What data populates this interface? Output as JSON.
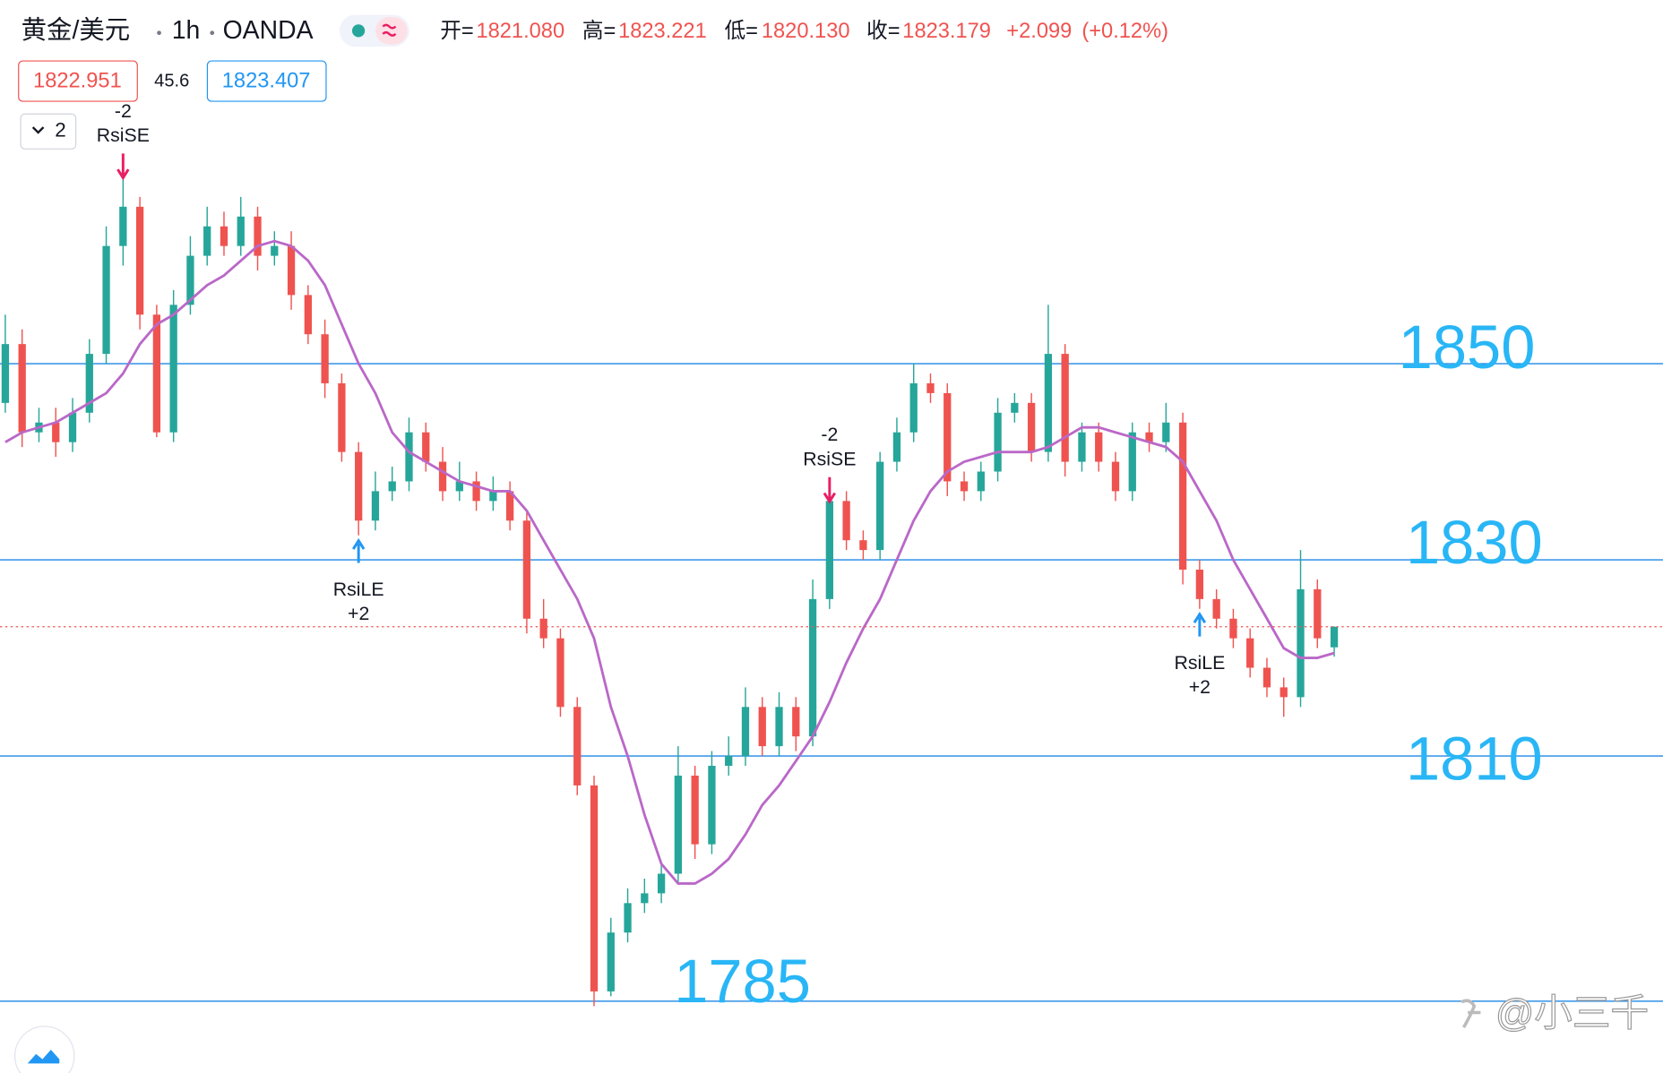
{
  "chart_data": {
    "type": "candlestick",
    "symbol": "黄金/美元",
    "interval": "1h",
    "source": "OANDA",
    "ohlc_labels": [
      "开=",
      "高=",
      "低=",
      "收="
    ],
    "ohlc_values": [
      {
        "value": 1821.08,
        "label": "1821.080"
      },
      {
        "value": 1823.221,
        "label": "1823.221"
      },
      {
        "value": 1820.13,
        "label": "1820.130"
      },
      {
        "value": 1823.179,
        "label": "1823.179"
      }
    ],
    "change": {
      "value": 2.099,
      "label": "+2.099"
    },
    "change_percent": {
      "value": 0.12,
      "label": "(+0.12%)"
    },
    "bid": 1822.951,
    "spread": 45.6,
    "ask": 1823.407,
    "indicator_count": 2,
    "watermark": "@小三千",
    "ylim": [
      1777.68,
      1887.08
    ],
    "up_color": "#26a69a",
    "down_color": "#ef5350",
    "level_color": "#1e88e5",
    "level_label_color": "#29b6f6",
    "levels": [
      1850,
      1830,
      1810,
      1785
    ],
    "open": [
      1846,
      1852,
      1843,
      1844,
      1842,
      1845,
      1851,
      1862,
      1866,
      1855,
      1843,
      1856,
      1861,
      1864,
      1862,
      1865,
      1861,
      1862,
      1857,
      1853,
      1848,
      1841,
      1834,
      1837,
      1838,
      1843,
      1840,
      1837,
      1838,
      1836,
      1837,
      1834,
      1824,
      1822,
      1815,
      1807,
      1786,
      1792,
      1795,
      1796,
      1798,
      1808,
      1801,
      1809,
      1810,
      1815,
      1811,
      1815,
      1812,
      1826,
      1836,
      1832,
      1831,
      1840,
      1843,
      1848,
      1847,
      1838,
      1837,
      1839,
      1845,
      1846,
      1841,
      1851,
      1840,
      1843,
      1840,
      1837,
      1843,
      1842,
      1844,
      1829,
      1826,
      1824,
      1822,
      1819,
      1817,
      1816,
      1827,
      1821.08
    ],
    "high": [
      1855,
      1853.5,
      1845.5,
      1845.5,
      1846.5,
      1852.5,
      1864,
      1871,
      1867,
      1856,
      1857.5,
      1863,
      1866,
      1865.5,
      1867,
      1866,
      1863.5,
      1863.5,
      1858,
      1854.5,
      1849,
      1842,
      1839,
      1839.5,
      1844.5,
      1844,
      1841.5,
      1840,
      1839,
      1838.5,
      1838,
      1835,
      1826,
      1823,
      1816,
      1808,
      1793.5,
      1796.5,
      1797.5,
      1799,
      1811,
      1809,
      1810.5,
      1812,
      1817,
      1816,
      1816.5,
      1816,
      1828,
      1838,
      1837,
      1833,
      1841,
      1844.5,
      1850,
      1849,
      1848,
      1839,
      1840,
      1846.5,
      1847,
      1847,
      1856,
      1852,
      1844,
      1844,
      1841,
      1844,
      1844,
      1846,
      1845,
      1830,
      1827,
      1825,
      1823,
      1820,
      1818,
      1831,
      1828,
      1823.221
    ],
    "low": [
      1845,
      1841.5,
      1842,
      1840.5,
      1841,
      1844,
      1850,
      1860,
      1853.5,
      1842.5,
      1842,
      1855,
      1860,
      1861,
      1861,
      1859.5,
      1860,
      1855.5,
      1852,
      1846.5,
      1840,
      1832.5,
      1833,
      1836,
      1837,
      1839,
      1836,
      1836,
      1835,
      1835,
      1833,
      1822.5,
      1821,
      1814,
      1806,
      1784.5,
      1785.5,
      1791,
      1794,
      1795,
      1797,
      1799.5,
      1800,
      1808,
      1809,
      1810,
      1810,
      1810.5,
      1811,
      1825,
      1831,
      1830,
      1830,
      1839,
      1842,
      1846,
      1836.5,
      1836,
      1836,
      1838,
      1844,
      1840,
      1840,
      1838.5,
      1839,
      1839,
      1836,
      1836,
      1841,
      1841,
      1827.5,
      1825,
      1823,
      1821,
      1818,
      1816,
      1814,
      1815,
      1821,
      1820.13
    ],
    "close": [
      1852,
      1843,
      1844,
      1842,
      1845,
      1851,
      1862,
      1866,
      1855,
      1843,
      1856,
      1861,
      1864,
      1862,
      1865,
      1861,
      1862,
      1857,
      1853,
      1848,
      1841,
      1834,
      1837,
      1838,
      1843,
      1840,
      1837,
      1838,
      1836,
      1837,
      1834,
      1824,
      1822,
      1815,
      1807,
      1786,
      1792,
      1795,
      1796,
      1798,
      1808,
      1801,
      1809,
      1810,
      1815,
      1811,
      1815,
      1812,
      1826,
      1836,
      1832,
      1831,
      1840,
      1843,
      1848,
      1847,
      1838,
      1837,
      1839,
      1845,
      1846,
      1841,
      1851,
      1840,
      1843,
      1840,
      1837,
      1843,
      1842,
      1844,
      1829,
      1826,
      1824,
      1822,
      1819,
      1817,
      1816,
      1827,
      1822,
      1823.179
    ],
    "ma": {
      "color": "#ba68c8",
      "values": [
        1842,
        1843,
        1843.5,
        1844,
        1845,
        1846,
        1847,
        1849,
        1852,
        1854,
        1855,
        1856.5,
        1858,
        1859,
        1860.5,
        1862,
        1862.5,
        1862,
        1860.5,
        1858,
        1854,
        1850,
        1847,
        1843,
        1841,
        1840,
        1839,
        1838,
        1837.5,
        1837,
        1837,
        1835,
        1832,
        1829,
        1826,
        1822,
        1815,
        1810,
        1804,
        1799,
        1797,
        1797,
        1798,
        1799.5,
        1802,
        1805,
        1807,
        1809.5,
        1812,
        1815.5,
        1819.5,
        1823,
        1826,
        1830,
        1834,
        1837,
        1839,
        1840,
        1840.5,
        1841,
        1841,
        1841,
        1841.5,
        1842.5,
        1843.5,
        1843.5,
        1843,
        1842.5,
        1842,
        1841.5,
        1840,
        1837,
        1834,
        1830,
        1827,
        1824,
        1821,
        1820,
        1820,
        1820.5
      ]
    },
    "signals": [
      null,
      null,
      null,
      null,
      null,
      null,
      null,
      {
        "name": "RsiSE",
        "size": -2
      },
      null,
      null,
      null,
      null,
      null,
      null,
      null,
      null,
      null,
      null,
      null,
      null,
      null,
      {
        "name": "RsiLE",
        "size": {
          "value": 2,
          "label": "+2"
        }
      },
      null,
      null,
      null,
      null,
      null,
      null,
      null,
      null,
      null,
      null,
      null,
      null,
      null,
      null,
      null,
      null,
      null,
      null,
      null,
      null,
      null,
      null,
      null,
      null,
      null,
      null,
      null,
      {
        "name": "RsiSE",
        "size": -2
      },
      null,
      null,
      null,
      null,
      null,
      null,
      null,
      null,
      null,
      null,
      null,
      null,
      null,
      null,
      null,
      null,
      null,
      null,
      null,
      null,
      null,
      {
        "name": "RsiLE",
        "size": {
          "value": 2,
          "label": "+2"
        }
      },
      null,
      null,
      null,
      null,
      null,
      null,
      null,
      null
    ]
  }
}
